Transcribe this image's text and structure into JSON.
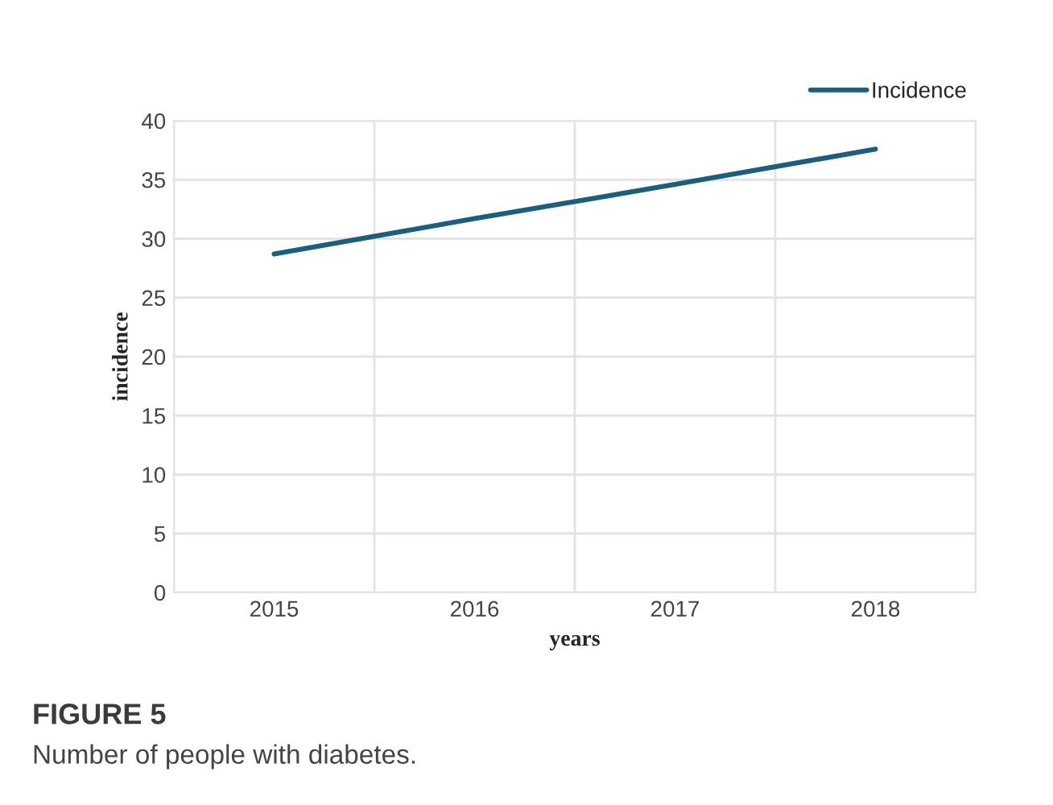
{
  "chart_data": {
    "type": "line",
    "xlabel": "years",
    "ylabel": "incidence",
    "categories": [
      "2015",
      "2016",
      "2017",
      "2018"
    ],
    "series": [
      {
        "name": "Incidence",
        "color": "#1b5e7f",
        "values": [
          28.7,
          31.7,
          34.6,
          37.6
        ]
      }
    ],
    "ylim": [
      0,
      40
    ],
    "yticks": [
      0,
      5,
      10,
      15,
      20,
      25,
      30,
      35,
      40
    ],
    "grid": true,
    "legend": "top right",
    "marker": "none",
    "line_style": "solid",
    "annotations": [
      "FIGURE 5",
      "Number of people with diabetes."
    ]
  }
}
